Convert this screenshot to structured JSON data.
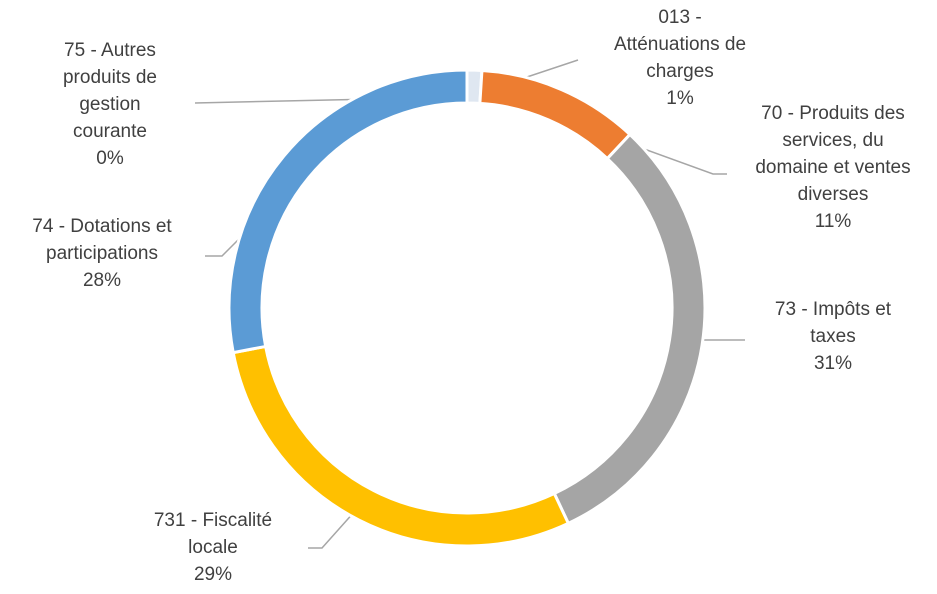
{
  "chart_data": {
    "type": "donut",
    "categories": [
      "013 - Atténuations de charges",
      "70 - Produits des services, du domaine et ventes diverses",
      "73 - Impôts et taxes",
      "731 - Fiscalité locale",
      "74 - Dotations et participations",
      "75 - Autres produits de gestion courante"
    ],
    "values": [
      1,
      11,
      31,
      29,
      28,
      0
    ],
    "value_labels": [
      "1%",
      "11%",
      "31%",
      "29%",
      "28%",
      "0%"
    ],
    "colors": [
      "#dfe7f1",
      "#ed7d31",
      "#a5a5a5",
      "#ffc000",
      "#5b9bd5",
      "#4472c4"
    ]
  }
}
